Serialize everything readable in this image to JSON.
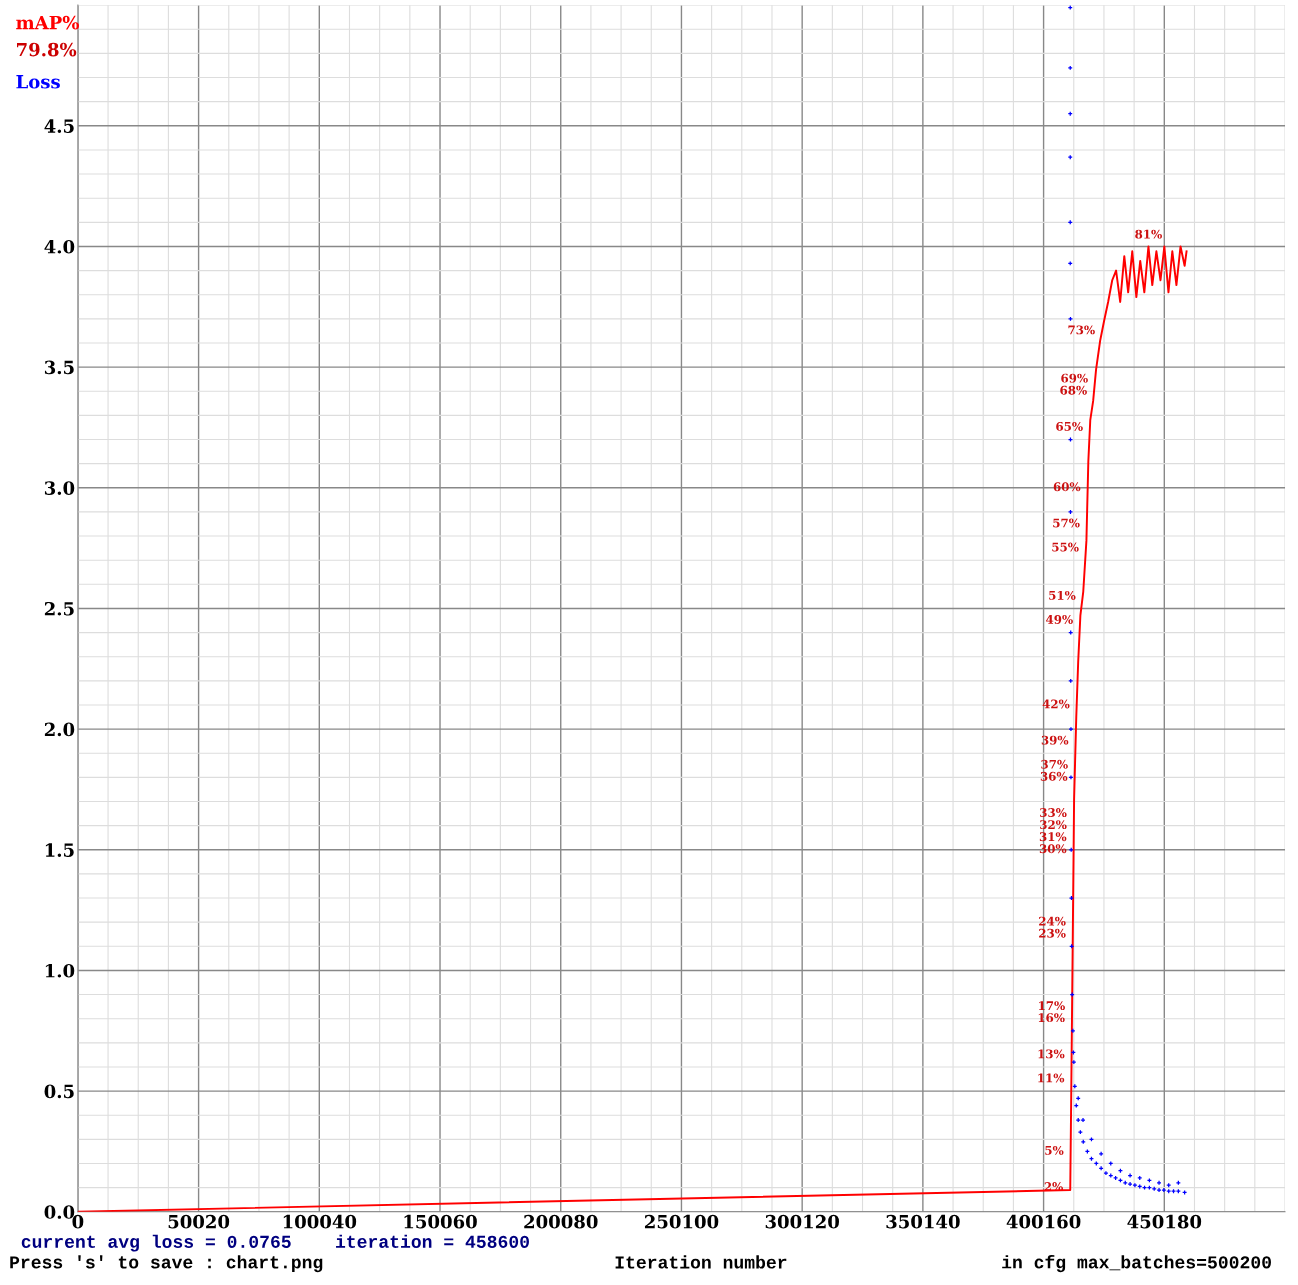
{
  "chart_data": {
    "type": "line",
    "xlabel": "Iteration number",
    "xlim": [
      0,
      500200
    ],
    "ylim": [
      0,
      5
    ],
    "xticks": [
      0,
      50020,
      100040,
      150060,
      200080,
      250100,
      300120,
      350140,
      400160,
      450180
    ],
    "yticks": [
      {
        "value": 0,
        "label": "0.0"
      },
      0.5,
      {
        "value": 1,
        "label": "1.0"
      },
      1.5,
      {
        "value": 2,
        "label": "2.0"
      },
      2.5,
      {
        "value": 3,
        "label": "3.0"
      },
      3.5,
      {
        "value": 4,
        "label": "4.0"
      },
      4.5
    ],
    "grid": true,
    "series": [
      {
        "name": "mAP%",
        "color": "#ff0000",
        "x": [
          0,
          411200,
          411600,
          412000,
          412400,
          412800,
          413700,
          414500,
          415400,
          416600,
          417900,
          418700,
          419500,
          420700,
          421900,
          423600,
          425200,
          426900,
          428600,
          430200,
          431900,
          433600,
          435200,
          436900,
          438600,
          440200,
          441900,
          443600,
          445200,
          446900,
          448600,
          450200,
          451900,
          453500,
          455200,
          456900,
          458600,
          459400
        ],
        "values": [
          0,
          0.09,
          0.47,
          0.88,
          1.29,
          1.71,
          2.05,
          2.28,
          2.47,
          2.57,
          2.78,
          3.11,
          3.28,
          3.36,
          3.49,
          3.61,
          3.69,
          3.77,
          3.86,
          3.9,
          3.77,
          3.96,
          3.81,
          3.98,
          3.79,
          3.94,
          3.81,
          4.0,
          3.84,
          3.98,
          3.86,
          4.0,
          3.81,
          3.98,
          3.84,
          4.0,
          3.92,
          3.98
        ]
      },
      {
        "name": "Loss",
        "color": "#0000ff",
        "type": "scatter",
        "marker": "cross",
        "x": [
          411200,
          411200,
          411200,
          411200,
          411200,
          411200,
          411300,
          411300,
          411300,
          411400,
          411400,
          411500,
          411500,
          411600,
          411700,
          411800,
          412000,
          412300,
          412700,
          413100,
          413700,
          414500,
          415400,
          416600,
          418300,
          420000,
          422000,
          424000,
          426000,
          428000,
          430000,
          432000,
          434000,
          436000,
          438000,
          440000,
          442000,
          444000,
          446000,
          448000,
          450000,
          452000,
          454000,
          456000,
          458600,
          412500,
          414500,
          416500,
          420000,
          424000,
          428000,
          432000,
          436000,
          440000,
          444000,
          448000,
          452000,
          456000
        ],
        "values": [
          4.99,
          4.74,
          4.55,
          4.37,
          4.1,
          3.93,
          3.7,
          3.2,
          2.9,
          2.4,
          2.2,
          2.0,
          1.8,
          1.5,
          1.3,
          1.1,
          0.9,
          0.75,
          0.62,
          0.52,
          0.44,
          0.38,
          0.33,
          0.29,
          0.25,
          0.22,
          0.2,
          0.18,
          0.16,
          0.15,
          0.14,
          0.13,
          0.12,
          0.115,
          0.11,
          0.105,
          0.1,
          0.1,
          0.095,
          0.09,
          0.09,
          0.085,
          0.085,
          0.085,
          0.08,
          0.66,
          0.47,
          0.38,
          0.3,
          0.24,
          0.2,
          0.17,
          0.15,
          0.14,
          0.13,
          0.12,
          0.11,
          0.12
        ]
      }
    ],
    "annotations": [
      "79.8%",
      "current avg loss = 0.0765    iteration = 458600",
      "Press 's' to save : chart.png",
      "in cfg max_batches=500200",
      {
        "text": "2%",
        "x": 411200,
        "y": 0.1
      },
      {
        "text": "5%",
        "x": 411400,
        "y": 0.25
      },
      {
        "text": "11%",
        "x": 411700,
        "y": 0.55
      },
      {
        "text": "13%",
        "x": 411800,
        "y": 0.65
      },
      {
        "text": "16%",
        "x": 411900,
        "y": 0.8
      },
      {
        "text": "17%",
        "x": 412000,
        "y": 0.85
      },
      {
        "text": "23%",
        "x": 412300,
        "y": 1.15
      },
      {
        "text": "24%",
        "x": 412300,
        "y": 1.2
      },
      {
        "text": "30%",
        "x": 412600,
        "y": 1.5
      },
      {
        "text": "31%",
        "x": 412600,
        "y": 1.55
      },
      {
        "text": "32%",
        "x": 412700,
        "y": 1.6
      },
      {
        "text": "33%",
        "x": 412700,
        "y": 1.65
      },
      {
        "text": "36%",
        "x": 413000,
        "y": 1.8
      },
      {
        "text": "37%",
        "x": 413200,
        "y": 1.85
      },
      {
        "text": "39%",
        "x": 413400,
        "y": 1.95
      },
      {
        "text": "42%",
        "x": 413900,
        "y": 2.1
      },
      {
        "text": "49%",
        "x": 415300,
        "y": 2.45
      },
      {
        "text": "51%",
        "x": 416400,
        "y": 2.55
      },
      {
        "text": "55%",
        "x": 417700,
        "y": 2.75
      },
      {
        "text": "57%",
        "x": 418100,
        "y": 2.85
      },
      {
        "text": "60%",
        "x": 418400,
        "y": 3.0
      },
      {
        "text": "65%",
        "x": 419400,
        "y": 3.25
      },
      {
        "text": "68%",
        "x": 421100,
        "y": 3.4
      },
      {
        "text": "69%",
        "x": 421500,
        "y": 3.45
      },
      {
        "text": "73%",
        "x": 424400,
        "y": 3.65
      },
      {
        "text": "81%",
        "x": 443600,
        "y": 4.0
      }
    ]
  }
}
